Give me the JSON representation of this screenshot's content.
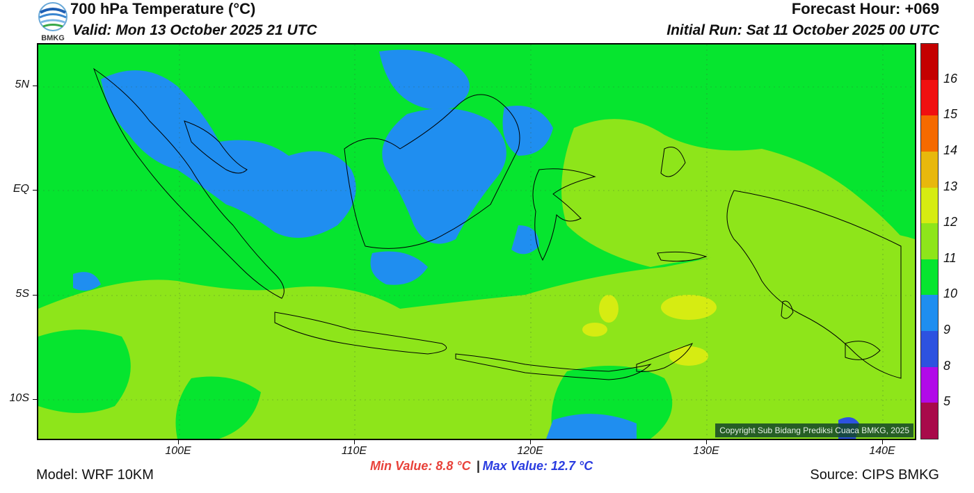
{
  "header": {
    "title": "700 hPa Temperature (°C)",
    "valid": "Valid: Mon 13 October 2025 21 UTC",
    "forecast_hour": "Forecast Hour: +069",
    "initial_run": "Initial Run: Sat 11 October 2025 00 UTC",
    "logo_text": "BMKG"
  },
  "footer": {
    "model": "Model: WRF 10KM",
    "source": "Source: CIPS BMKG",
    "min_value": "Min Value: 8.8 °C",
    "separator": "|",
    "max_value": "Max Value: 12.7 °C",
    "copyright": "Copyright Sub Bidang Prediksi Cuaca BMKG, 2025"
  },
  "map": {
    "lon_range": [
      92,
      142
    ],
    "lat_range": [
      -12,
      7
    ],
    "lat_labels": [
      {
        "lat": 5,
        "label": "5N"
      },
      {
        "lat": 0,
        "label": "EQ"
      },
      {
        "lat": -5,
        "label": "5S"
      },
      {
        "lat": -10,
        "label": "10S"
      }
    ],
    "lon_labels": [
      {
        "lon": 100,
        "label": "100E"
      },
      {
        "lon": 110,
        "label": "110E"
      },
      {
        "lon": 120,
        "label": "120E"
      },
      {
        "lon": 130,
        "label": "130E"
      },
      {
        "lon": 140,
        "label": "140E"
      }
    ],
    "colors": {
      "t10_11": "#06e52f",
      "t9_10": "#1f8ef0",
      "t11_12": "#8ee51a",
      "t12_13": "#d6ec12",
      "t8_9": "#2d52e0"
    }
  },
  "colorbar": {
    "segments": [
      {
        "color": "#c40000"
      },
      {
        "color": "#f01010"
      },
      {
        "color": "#f56a00"
      },
      {
        "color": "#e8b80c"
      },
      {
        "color": "#d6ec12"
      },
      {
        "color": "#8ee51a"
      },
      {
        "color": "#06e52f"
      },
      {
        "color": "#1f8ef0"
      },
      {
        "color": "#2d52e0"
      },
      {
        "color": "#b10ae8"
      },
      {
        "color": "#a80a4a"
      }
    ],
    "labels": [
      "16",
      "15",
      "14",
      "13",
      "12",
      "11",
      "10",
      "9",
      "8",
      "5"
    ]
  }
}
